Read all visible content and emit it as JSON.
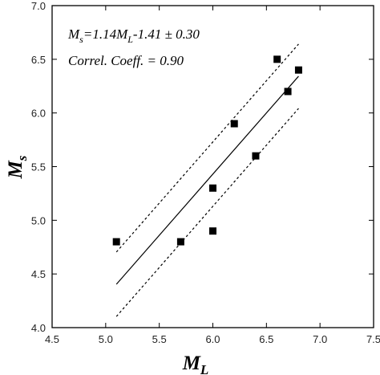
{
  "chart_data": {
    "type": "scatter",
    "xlim": [
      4.5,
      7.5
    ],
    "ylim": [
      4.0,
      7.0
    ],
    "x_ticks": [
      4.5,
      5.0,
      5.5,
      6.0,
      6.5,
      7.0,
      7.5
    ],
    "y_ticks": [
      4.0,
      4.5,
      5.0,
      5.5,
      6.0,
      6.5,
      7.0
    ],
    "x_tick_labels": [
      "4.5",
      "5.0",
      "5.5",
      "6.0",
      "6.5",
      "7.0",
      "7.5"
    ],
    "y_tick_labels": [
      "4.0",
      "4.5",
      "5.0",
      "5.5",
      "6.0",
      "6.5",
      "7.0"
    ],
    "xlabel": {
      "main": "M",
      "sub": "L"
    },
    "ylabel": {
      "main": "M",
      "sub": "s"
    },
    "grid": false,
    "points": [
      {
        "x": 5.1,
        "y": 4.8
      },
      {
        "x": 5.7,
        "y": 4.8
      },
      {
        "x": 6.0,
        "y": 5.3
      },
      {
        "x": 6.0,
        "y": 4.9
      },
      {
        "x": 6.2,
        "y": 5.9
      },
      {
        "x": 6.4,
        "y": 5.6
      },
      {
        "x": 6.6,
        "y": 6.5
      },
      {
        "x": 6.7,
        "y": 6.2
      },
      {
        "x": 6.8,
        "y": 6.4
      }
    ],
    "fit": {
      "slope": 1.14,
      "intercept": -1.41,
      "std_error": 0.3,
      "x_range": [
        5.1,
        6.8
      ]
    },
    "annotations": {
      "equation": {
        "s1": "M",
        "s2": "s",
        "s3": "=1.14M",
        "s4": "L",
        "s5": "-1.41 ± 0.30"
      },
      "correlation": "Correl. Coeff. = 0.90"
    }
  }
}
